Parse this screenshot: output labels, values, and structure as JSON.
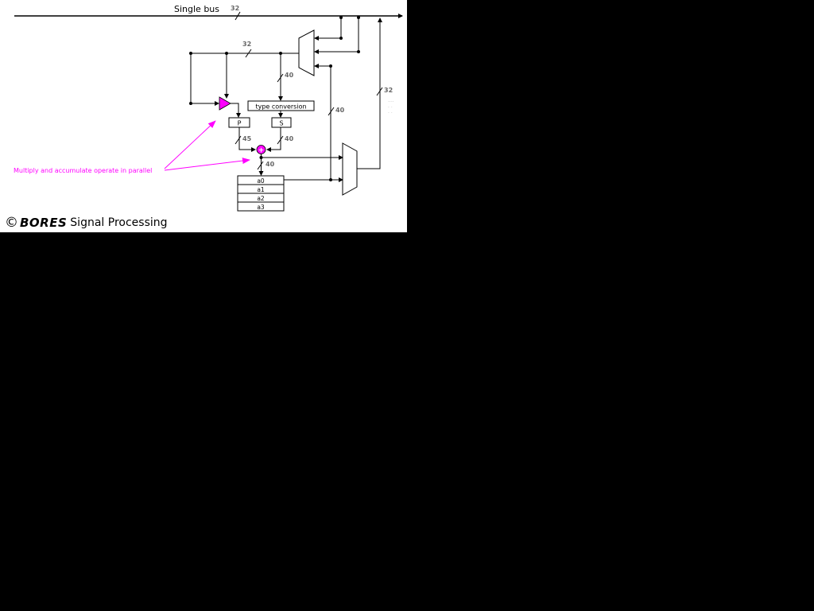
{
  "diagram": {
    "bus_label": "Single bus",
    "widths": {
      "bus": "32",
      "upper": "32",
      "to_convert": "40",
      "feedback": "40",
      "right": "32",
      "p_out": "45",
      "s_out": "40",
      "acc_out": "40"
    },
    "blocks": {
      "type_conversion": "type conversion",
      "p": "P",
      "s": "S"
    },
    "accumulators": [
      "a0",
      "a1",
      "a2",
      "a3"
    ],
    "adder_symbol": "+",
    "annotation": "Multiply and accumulate operate in parallel",
    "annotation_color": "#ff00ff",
    "faint_note_lines": [
      "····",
      "· ·",
      "· ·"
    ]
  },
  "footer": {
    "copyright_symbol": "©",
    "brand": "BORES",
    "rest": "Signal Processing"
  }
}
